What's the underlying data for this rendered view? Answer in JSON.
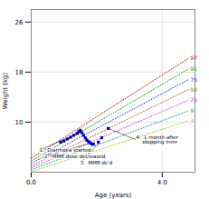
{
  "chart_data": {
    "type": "scatter",
    "xlabel": "Age (years)",
    "ylabel": "Weight (kg)",
    "xlim": [
      0,
      5
    ],
    "ylim": [
      2,
      28
    ],
    "xticks": [
      0,
      4
    ],
    "yticks": [
      10,
      18,
      26
    ],
    "grid": true,
    "series": [
      {
        "name": "97",
        "type": "line",
        "color": "#cc0000",
        "line_style": "dotted",
        "x": [
          0,
          4.8
        ],
        "values": [
          4.2,
          20.2
        ]
      },
      {
        "name": "91",
        "type": "line",
        "color": "#009900",
        "line_style": "dotted",
        "x": [
          0,
          4.8
        ],
        "values": [
          3.8,
          18.5
        ]
      },
      {
        "name": "75",
        "type": "line",
        "color": "#3333cc",
        "line_style": "dotted",
        "x": [
          0,
          4.8
        ],
        "values": [
          3.4,
          16.8
        ]
      },
      {
        "name": "50",
        "type": "line",
        "color": "#996633",
        "line_style": "dotted",
        "x": [
          0,
          4.8
        ],
        "values": [
          3.0,
          15.2
        ]
      },
      {
        "name": "25",
        "type": "line",
        "color": "#cc44cc",
        "line_style": "dotted",
        "x": [
          0,
          4.8
        ],
        "values": [
          2.7,
          13.5
        ]
      },
      {
        "name": "9",
        "type": "line",
        "color": "#009999",
        "line_style": "dotted",
        "x": [
          0,
          4.8
        ],
        "values": [
          2.4,
          11.8
        ]
      },
      {
        "name": "3",
        "type": "line",
        "color": "#99cc00",
        "line_style": "dotted",
        "x": [
          0,
          4.8
        ],
        "values": [
          2.1,
          10.2
        ]
      },
      {
        "type": "scatter",
        "color": "#0000bb",
        "marker": "square",
        "x": [
          0.9,
          1.0,
          1.1,
          1.2,
          1.3,
          1.4,
          1.45,
          1.5,
          1.55,
          1.6,
          1.65,
          1.7,
          1.75,
          1.8,
          1.85,
          1.9,
          2.05,
          2.15,
          2.35
        ],
        "values": [
          6.8,
          7.0,
          7.3,
          7.6,
          7.9,
          8.2,
          8.5,
          8.7,
          8.3,
          7.9,
          7.5,
          7.1,
          6.9,
          6.7,
          6.5,
          6.5,
          6.8,
          7.5,
          9.0
        ]
      }
    ],
    "annotations": [
      {
        "text": "1.  Diarrhoea started",
        "x": 1.5,
        "y": 8.4,
        "text_x": 0.25,
        "text_y": 5.5
      },
      {
        "text": "2.  MMR dose decreased",
        "x": 1.85,
        "y": 6.7,
        "text_x": 0.4,
        "text_y": 4.5
      },
      {
        "text": "3.  MMR dc'd",
        "x": 2.05,
        "y": 6.5,
        "text_x": 1.5,
        "text_y": 3.5
      },
      {
        "text": "4.  1 month after\n    stopping mmr",
        "x": 2.35,
        "y": 9.0,
        "text_x": 3.2,
        "text_y": 7.2
      }
    ]
  }
}
